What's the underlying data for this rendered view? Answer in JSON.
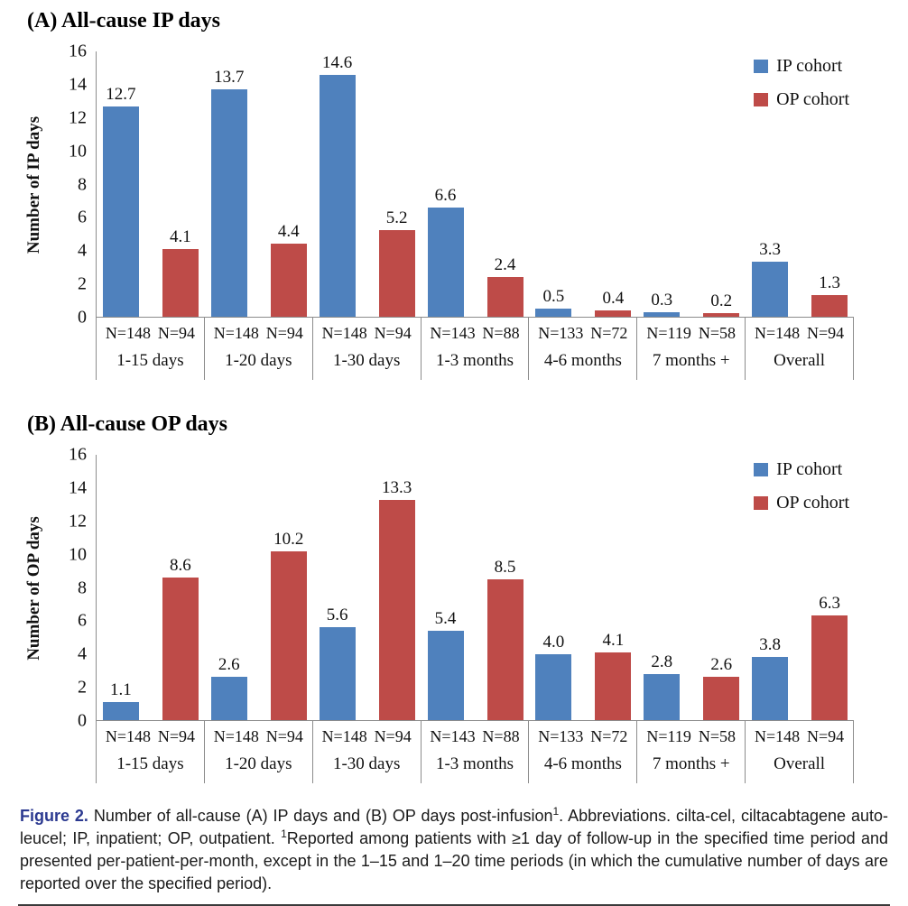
{
  "colors": {
    "ip_bar": "#4F81BD",
    "op_bar": "#BE4B48",
    "axis_line": "#8C8C8C",
    "figure_label_text": "#2B3990"
  },
  "chart_data": [
    {
      "type": "bar",
      "panel": "a",
      "title": "(A) All-cause IP days",
      "ylabel": "Number of IP days",
      "xlabel": "",
      "ylim": [
        0,
        16
      ],
      "ytick_step": 2,
      "grid": false,
      "legend_position": "top-right",
      "categories": [
        "1-15 days",
        "1-20 days",
        "1-30 days",
        "1-3 months",
        "4-6 months",
        "7 months +",
        "Overall"
      ],
      "group_n_labels": [
        [
          "N=148",
          "N=94"
        ],
        [
          "N=148",
          "N=94"
        ],
        [
          "N=148",
          "N=94"
        ],
        [
          "N=143",
          "N=88"
        ],
        [
          "N=133",
          "N=72"
        ],
        [
          "N=119",
          "N=58"
        ],
        [
          "N=148",
          "N=94"
        ]
      ],
      "series": [
        {
          "name": "IP cohort",
          "color": "#4F81BD",
          "values": [
            12.7,
            13.7,
            14.6,
            6.6,
            0.5,
            0.3,
            3.3
          ]
        },
        {
          "name": "OP cohort",
          "color": "#BE4B48",
          "values": [
            4.1,
            4.4,
            5.2,
            2.4,
            0.4,
            0.2,
            1.3
          ]
        }
      ]
    },
    {
      "type": "bar",
      "panel": "b",
      "title": "(B) All-cause OP days",
      "ylabel": "Number of OP days",
      "xlabel": "",
      "ylim": [
        0,
        16
      ],
      "ytick_step": 2,
      "grid": false,
      "legend_position": "top-right",
      "categories": [
        "1-15 days",
        "1-20 days",
        "1-30 days",
        "1-3 months",
        "4-6 months",
        "7 months +",
        "Overall"
      ],
      "group_n_labels": [
        [
          "N=148",
          "N=94"
        ],
        [
          "N=148",
          "N=94"
        ],
        [
          "N=148",
          "N=94"
        ],
        [
          "N=143",
          "N=88"
        ],
        [
          "N=133",
          "N=72"
        ],
        [
          "N=119",
          "N=58"
        ],
        [
          "N=148",
          "N=94"
        ]
      ],
      "series": [
        {
          "name": "IP cohort",
          "color": "#4F81BD",
          "values": [
            1.1,
            2.6,
            5.6,
            5.4,
            4.0,
            2.8,
            3.8
          ]
        },
        {
          "name": "OP cohort",
          "color": "#BE4B48",
          "values": [
            8.6,
            10.2,
            13.3,
            8.5,
            4.1,
            2.6,
            6.3
          ]
        }
      ]
    }
  ],
  "caption": {
    "figure_label": "Figure 2.",
    "body_before_sup1": "Number of all-cause (A) IP days and (B) OP days post-infusion",
    "sup": "1",
    "body_mid": ". Abbreviations. cilta-cel, ciltacabtagene auto-leucel; IP, inpatient; OP, outpatient. ",
    "body_after_sup2": "Reported among patients with ≥1 day of follow-up in the specified time period and presented per-patient-per-month, except in the 1–15 and 1–20 time periods (in which the cumulative number of days are reported over the specified period)."
  }
}
